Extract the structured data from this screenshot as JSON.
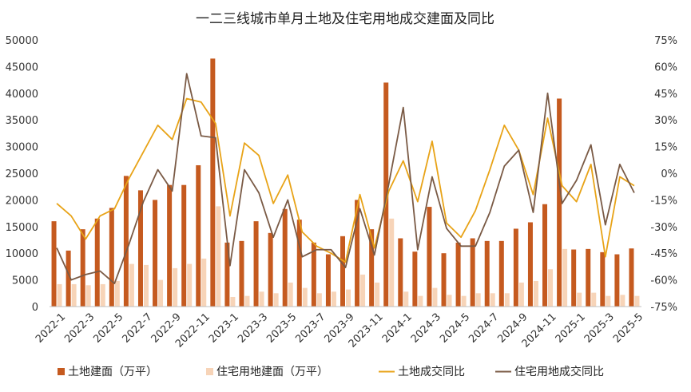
{
  "chart_data": {
    "type": "bar",
    "title": "一二三线城市单月土地及住宅用地成交建面及同比",
    "categories": [
      "2022-1",
      "2022-2",
      "2022-3",
      "2022-4",
      "2022-5",
      "2022-6",
      "2022-7",
      "2022-8",
      "2022-9",
      "2022-10",
      "2022-11",
      "2022-12",
      "2023-1",
      "2023-2",
      "2023-3",
      "2023-4",
      "2023-5",
      "2023-6",
      "2023-7",
      "2023-8",
      "2023-9",
      "2023-10",
      "2023-11",
      "2023-12",
      "2024-1",
      "2024-2",
      "2024-3",
      "2024-4",
      "2024-5",
      "2024-6",
      "2024-7",
      "2024-8",
      "2024-9",
      "2024-10",
      "2024-11",
      "2024-12",
      "2025-1",
      "2025-2",
      "2025-3",
      "2025-4",
      "2025-5"
    ],
    "x_tick_labels": [
      "2022-1",
      "2022-3",
      "2022-5",
      "2022-7",
      "2022-9",
      "2022-11",
      "2023-1",
      "2023-3",
      "2023-5",
      "2023-7",
      "2023-9",
      "2023-11",
      "2024-1",
      "2024-3",
      "2024-5",
      "2024-7",
      "2024-9",
      "2024-11",
      "2025-1",
      "2025-3",
      "2025-5"
    ],
    "y_left": {
      "ylim": [
        0,
        50000
      ],
      "ticks": [
        "0",
        "5000",
        "10000",
        "15000",
        "20000",
        "25000",
        "30000",
        "35000",
        "40000",
        "45000",
        "50000"
      ]
    },
    "y_right": {
      "ylim": [
        -75,
        75
      ],
      "ticks": [
        "-75%",
        "-60%",
        "-45%",
        "-30%",
        "-15%",
        "0%",
        "15%",
        "30%",
        "45%",
        "60%",
        "75%"
      ]
    },
    "series": [
      {
        "name": "土地建面（万平）",
        "kind": "bar",
        "axis": "left",
        "color": "#c55a1f",
        "values": [
          16000,
          10500,
          14500,
          16500,
          18500,
          24500,
          21800,
          20000,
          22800,
          22800,
          26500,
          46500,
          12000,
          12300,
          16000,
          13800,
          18300,
          16300,
          12000,
          9800,
          13200,
          20000,
          14500,
          42000,
          12800,
          10300,
          18700,
          10000,
          12000,
          12800,
          12300,
          12300,
          14600,
          15800,
          19200,
          39000,
          10700,
          10800,
          10200,
          9800,
          10900
        ]
      },
      {
        "name": "住宅用地建面（万平）",
        "kind": "bar",
        "axis": "left",
        "color": "#f7d4b8",
        "values": [
          4200,
          4200,
          4000,
          4200,
          4800,
          8000,
          7800,
          5000,
          7200,
          8000,
          9000,
          18800,
          1800,
          2000,
          2800,
          2500,
          4500,
          3500,
          2500,
          2800,
          3200,
          6000,
          4500,
          16500,
          2800,
          2000,
          3500,
          2200,
          2000,
          2500,
          2500,
          2500,
          4500,
          4800,
          7000,
          10800,
          2600,
          2600,
          2000,
          2200,
          2000
        ]
      },
      {
        "name": "土地成交同比",
        "kind": "line",
        "axis": "right",
        "color": "#e8a317",
        "values": [
          -17,
          -24,
          -37,
          -24,
          -20,
          -3,
          12,
          27,
          19,
          42,
          40,
          28,
          -24,
          17,
          10,
          -17,
          -1,
          -33,
          -41,
          -45,
          -50,
          -12,
          -42,
          -10,
          7,
          -16,
          18,
          -28,
          -36,
          -21,
          2,
          27,
          13,
          -12,
          31,
          -7,
          -16,
          5,
          -47,
          -2,
          -7
        ]
      },
      {
        "name": "住宅用地成交同比",
        "kind": "line",
        "axis": "right",
        "color": "#7a5a45",
        "values": [
          -42,
          -60,
          -57,
          -55,
          -62,
          -40,
          -16,
          2,
          -10,
          56,
          21,
          20,
          -52,
          2,
          -11,
          -36,
          -15,
          -47,
          -43,
          -43,
          -53,
          -20,
          -46,
          -6,
          37,
          -43,
          -2,
          -31,
          -41,
          -41,
          -22,
          4,
          13,
          -22,
          45,
          -17,
          -4,
          16,
          -29,
          5,
          -11
        ]
      }
    ],
    "legend_position": "bottom",
    "grid": false
  }
}
